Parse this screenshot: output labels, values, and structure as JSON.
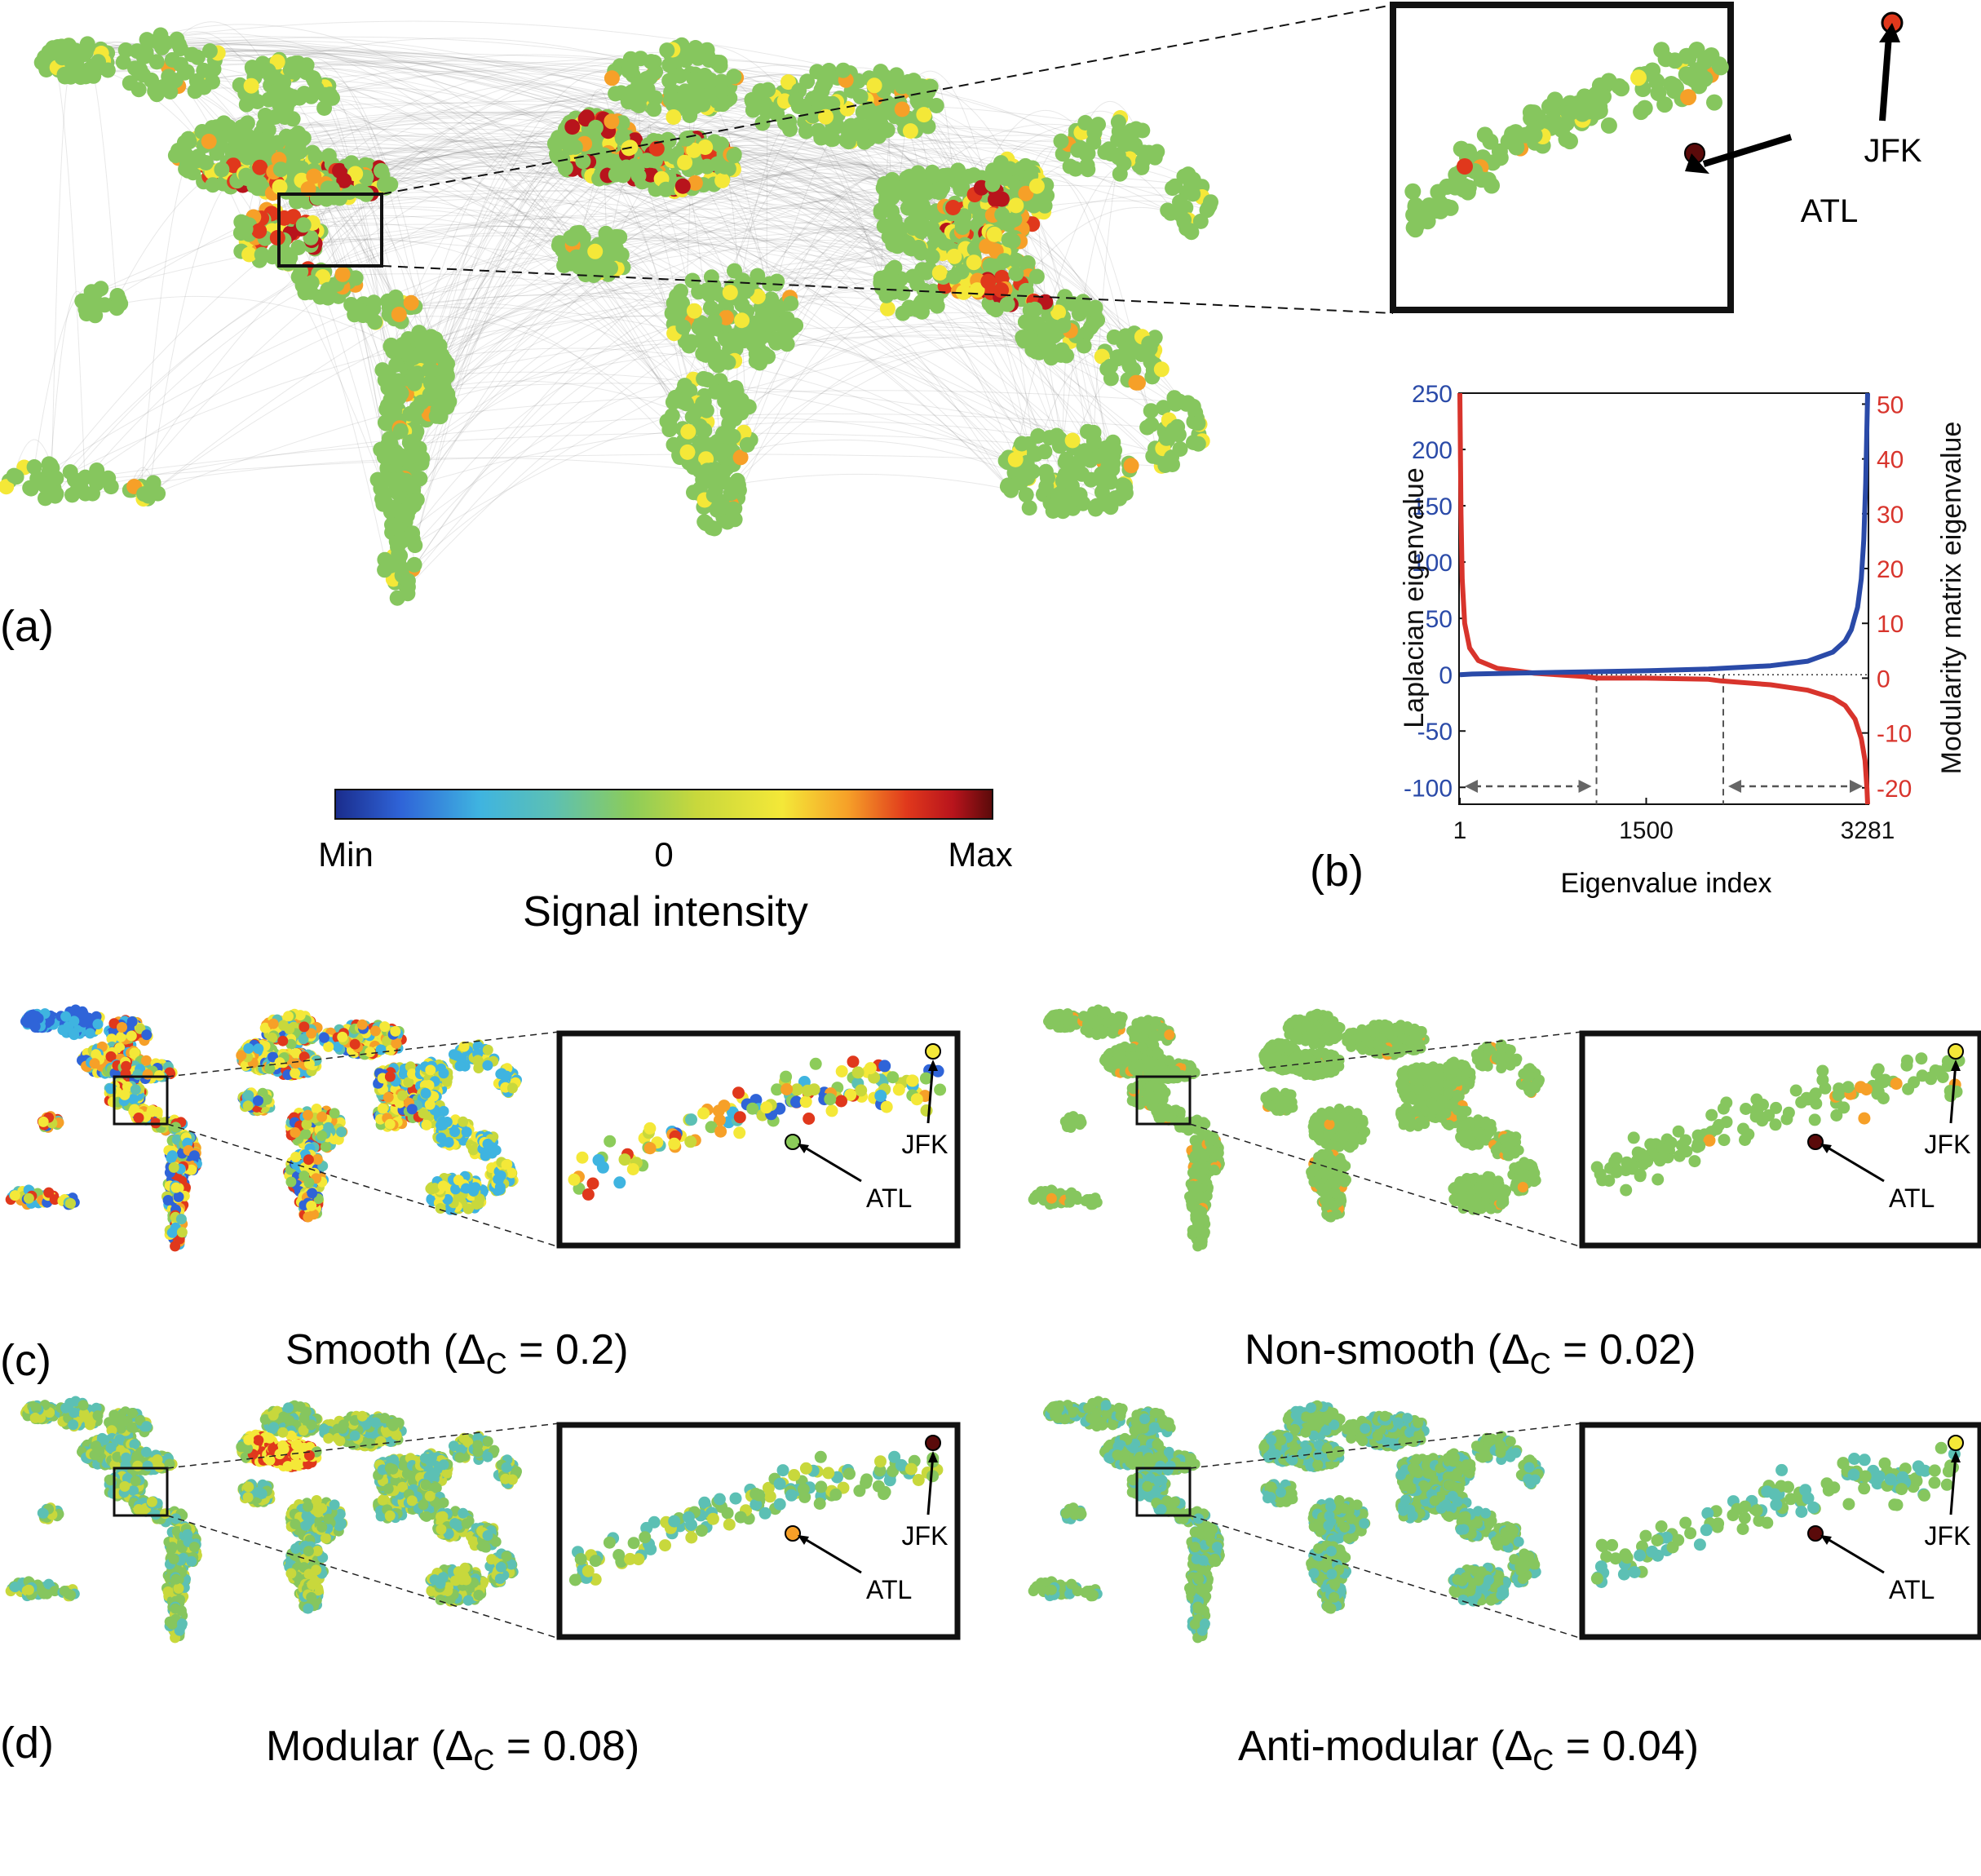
{
  "figure": {
    "panel_a_label": "(a)",
    "panel_b_label": "(b)",
    "panel_c_label": "(c)",
    "panel_d_label": "(d)",
    "colorbar": {
      "min_label": "Min",
      "mid_label": "0",
      "max_label": "Max",
      "title": "Signal intensity",
      "colors": [
        "#1a2c8c",
        "#2f64d8",
        "#3fb4e0",
        "#5cc0b4",
        "#8ccc5a",
        "#c8d83c",
        "#f4e838",
        "#f6a028",
        "#e0381c",
        "#b8141c",
        "#5a0a0a"
      ]
    },
    "airports": {
      "jfk": "JFK",
      "atl": "ATL"
    },
    "network_colors": {
      "node": "#86c65e",
      "edge": "#6e6e6e"
    },
    "panels": [
      {
        "id": "c-left",
        "prefix": "Smooth (",
        "delta": "Δ",
        "subscript": "C",
        "suffix": " = 0.2)"
      },
      {
        "id": "c-right",
        "prefix": "Non-smooth (",
        "delta": "Δ",
        "subscript": "C",
        "suffix": " = 0.02)"
      },
      {
        "id": "d-left",
        "prefix": "Modular (",
        "delta": "Δ",
        "subscript": "C",
        "suffix": " = 0.08)"
      },
      {
        "id": "d-right",
        "prefix": "Anti-modular (",
        "delta": "Δ",
        "subscript": "C",
        "suffix": " = 0.04)"
      }
    ]
  },
  "chart_data": {
    "type": "line",
    "xlabel": "Eigenvalue index",
    "ylabel_left": "Laplacian eigenvalue",
    "ylabel_right": "Modularity matrix eigenvalue",
    "x_ticks": [
      "1",
      "1500",
      "3281"
    ],
    "x_tick_values": [
      1,
      1500,
      3281
    ],
    "xlim": [
      1,
      3281
    ],
    "y_left_ticks": [
      250,
      200,
      150,
      100,
      50,
      0,
      -50,
      -100
    ],
    "ylim_left": [
      -115,
      250
    ],
    "y_right_ticks": [
      50,
      40,
      30,
      20,
      10,
      0,
      -10,
      -20
    ],
    "ylim_right": [
      -23,
      52
    ],
    "series": [
      {
        "color": "#2a4aa8",
        "axis": "left",
        "x": [
          1,
          100,
          500,
          1000,
          1500,
          2000,
          2500,
          2800,
          3000,
          3100,
          3150,
          3200,
          3230,
          3250,
          3265,
          3275,
          3281
        ],
        "values": [
          0,
          0.6,
          1.5,
          2.5,
          3.5,
          5,
          8,
          12,
          20,
          30,
          40,
          60,
          85,
          120,
          170,
          220,
          250
        ]
      },
      {
        "color": "#d8342c",
        "axis": "right",
        "x": [
          1,
          10,
          20,
          40,
          80,
          150,
          300,
          600,
          1000,
          1100,
          1500,
          2000,
          2100,
          2500,
          2800,
          3000,
          3100,
          3180,
          3230,
          3260,
          3275,
          3281
        ],
        "values": [
          52,
          30,
          18,
          10,
          5.5,
          3.2,
          1.8,
          0.9,
          0.3,
          0,
          0,
          -0.2,
          -0.5,
          -1.2,
          -2.2,
          -3.6,
          -5,
          -7.5,
          -11,
          -15,
          -20,
          -23
        ]
      }
    ],
    "vlines_x": [
      1100,
      2120
    ],
    "arrows": [
      [
        1,
        1100
      ],
      [
        2120,
        3281
      ]
    ]
  }
}
